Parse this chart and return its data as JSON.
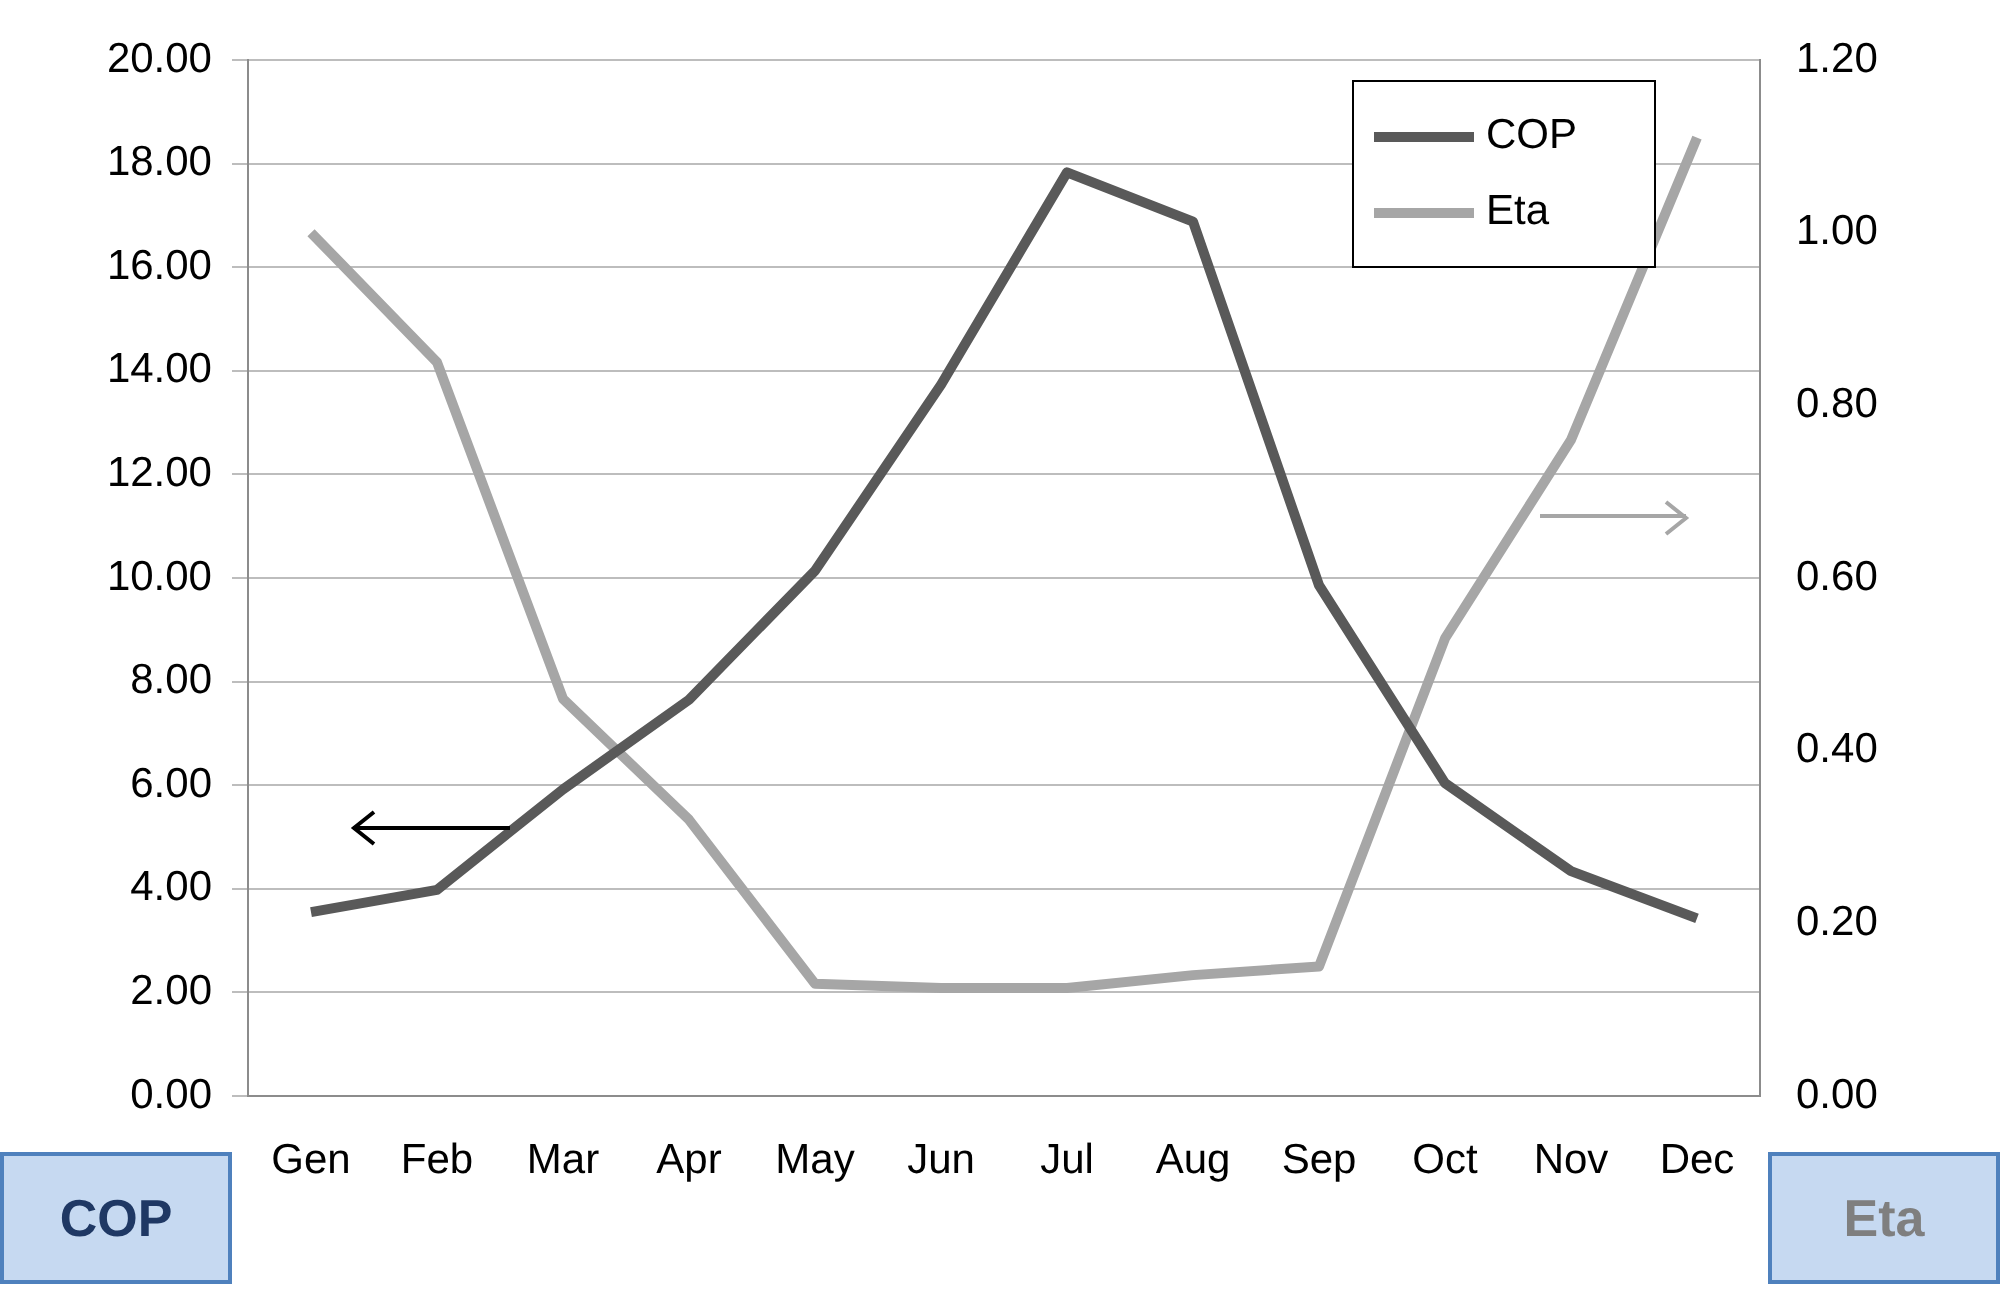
{
  "chart_data": {
    "type": "line",
    "ylabel": "COP",
    "y2label": "Eta",
    "categories": [
      "Gen",
      "Feb",
      "Mar",
      "Apr",
      "May",
      "Jun",
      "Jul",
      "Aug",
      "Sep",
      "Oct",
      "Nov",
      "Dec"
    ],
    "series": [
      {
        "name": "COP",
        "color": "#595959",
        "values": [
          3.55,
          3.98,
          5.92,
          7.65,
          10.14,
          13.73,
          17.83,
          16.88,
          9.86,
          6.04,
          4.34,
          3.43
        ]
      },
      {
        "name": "Eta",
        "color": "#a6a6a6",
        "axis": "y2",
        "values": [
          1.0,
          0.85,
          0.46,
          0.32,
          0.13,
          0.125,
          0.125,
          0.14,
          0.15,
          0.53,
          0.76,
          1.11
        ]
      }
    ],
    "ylim": [
      0,
      20
    ],
    "yticks": [
      {
        "value": 0,
        "label": "0.00"
      },
      {
        "value": 2,
        "label": "2.00"
      },
      {
        "value": 4,
        "label": "4.00"
      },
      {
        "value": 6,
        "label": "6.00"
      },
      {
        "value": 8,
        "label": "8.00"
      },
      {
        "value": 10,
        "label": "10.00"
      },
      {
        "value": 12,
        "label": "12.00"
      },
      {
        "value": 14,
        "label": "14.00"
      },
      {
        "value": 16,
        "label": "16.00"
      },
      {
        "value": 18,
        "label": "18.00"
      },
      {
        "value": 20,
        "label": "20.00"
      }
    ],
    "y2lim": [
      0,
      1.2
    ],
    "y2ticks": [
      {
        "value": 0,
        "label": "0.00"
      },
      {
        "value": 0.2,
        "label": "0.20"
      },
      {
        "value": 0.4,
        "label": "0.40"
      },
      {
        "value": 0.6,
        "label": "0.60"
      },
      {
        "value": 0.8,
        "label": "0.80"
      },
      {
        "value": 1,
        "label": "1.00"
      },
      {
        "value": 1.2,
        "label": "1.20"
      }
    ],
    "grid": "y",
    "legend": "top right",
    "marker": "none",
    "line_style": "solid"
  }
}
